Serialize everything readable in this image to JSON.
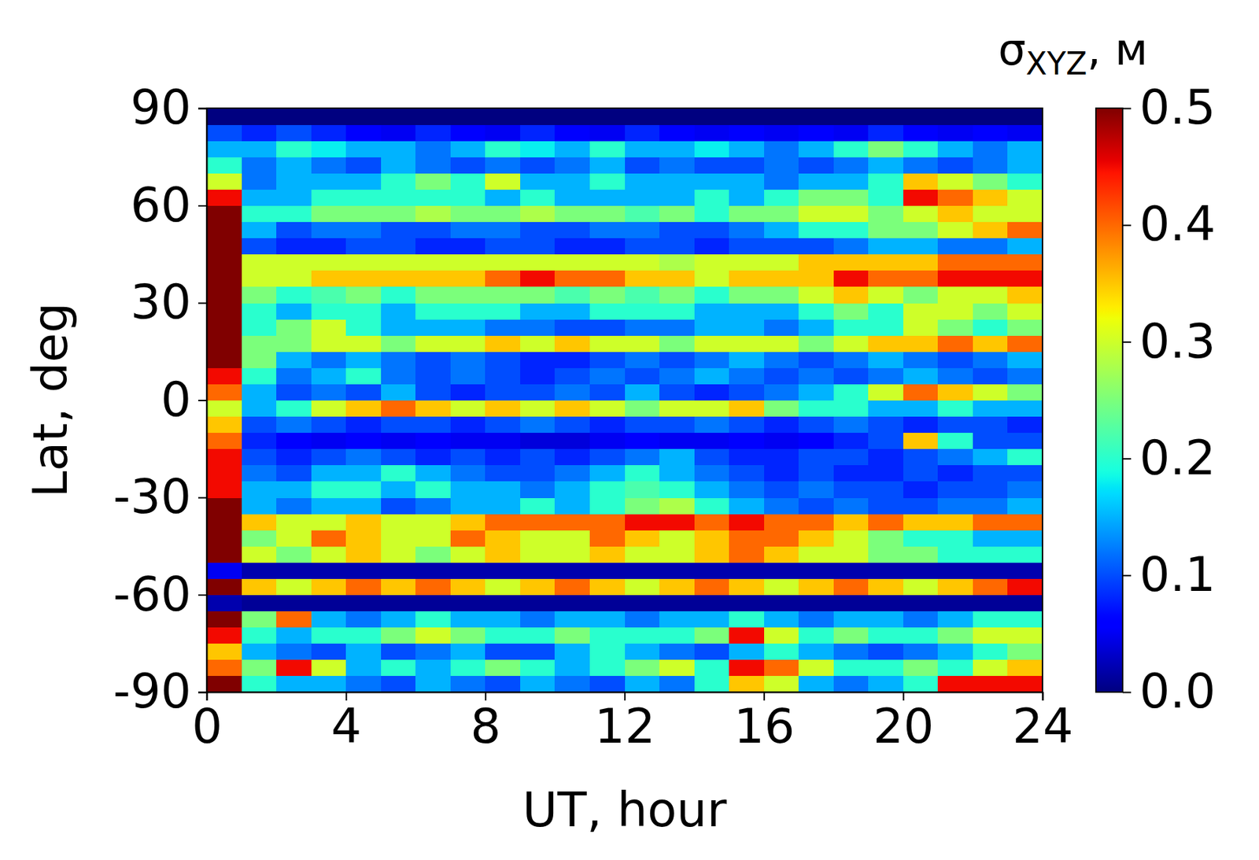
{
  "chart_data": {
    "type": "heatmap",
    "x_label": "UT, hour",
    "y_label": "Lat, deg",
    "xlim": [
      0,
      24
    ],
    "ylim": [
      -90,
      90
    ],
    "xticks": [
      0,
      4,
      8,
      12,
      16,
      20,
      24
    ],
    "yticks": [
      -90,
      -60,
      -30,
      0,
      30,
      60,
      90
    ],
    "x_edges": [
      0,
      1,
      2,
      3,
      4,
      5,
      6,
      7,
      8,
      9,
      10,
      11,
      12,
      13,
      14,
      15,
      16,
      17,
      18,
      19,
      20,
      21,
      22,
      23,
      24
    ],
    "y_edges": [
      -90,
      -85,
      -80,
      -75,
      -70,
      -65,
      -60,
      -55,
      -50,
      -45,
      -40,
      -35,
      -30,
      -25,
      -20,
      -15,
      -10,
      -5,
      0,
      5,
      10,
      15,
      20,
      25,
      30,
      35,
      40,
      45,
      50,
      55,
      60,
      65,
      70,
      75,
      80,
      85,
      90
    ],
    "values": [
      [
        0.5,
        0.2,
        0.15,
        0.15,
        0.12,
        0.1,
        0.15,
        0.12,
        0.1,
        0.15,
        0.12,
        0.1,
        0.15,
        0.12,
        0.2,
        0.35,
        0.3,
        0.15,
        0.12,
        0.15,
        0.2,
        0.45,
        0.45,
        0.45
      ],
      [
        0.4,
        0.25,
        0.45,
        0.3,
        0.15,
        0.2,
        0.15,
        0.2,
        0.25,
        0.2,
        0.15,
        0.2,
        0.25,
        0.3,
        0.2,
        0.45,
        0.4,
        0.3,
        0.2,
        0.2,
        0.25,
        0.2,
        0.3,
        0.35
      ],
      [
        0.35,
        0.15,
        0.12,
        0.1,
        0.15,
        0.1,
        0.12,
        0.15,
        0.1,
        0.1,
        0.15,
        0.2,
        0.15,
        0.12,
        0.1,
        0.15,
        0.2,
        0.15,
        0.12,
        0.1,
        0.12,
        0.15,
        0.2,
        0.25
      ],
      [
        0.45,
        0.2,
        0.15,
        0.2,
        0.2,
        0.25,
        0.3,
        0.25,
        0.2,
        0.2,
        0.25,
        0.2,
        0.2,
        0.2,
        0.25,
        0.45,
        0.3,
        0.2,
        0.25,
        0.2,
        0.2,
        0.25,
        0.3,
        0.3
      ],
      [
        0.5,
        0.25,
        0.4,
        0.15,
        0.12,
        0.15,
        0.2,
        0.15,
        0.15,
        0.12,
        0.15,
        0.15,
        0.12,
        0.15,
        0.15,
        0.2,
        0.15,
        0.12,
        0.15,
        0.15,
        0.12,
        0.15,
        0.2,
        0.2
      ],
      [
        0.02,
        0.01,
        0.01,
        0.01,
        0.01,
        0.01,
        0.01,
        0.01,
        0.01,
        0.01,
        0.01,
        0.01,
        0.01,
        0.01,
        0.01,
        0.01,
        0.01,
        0.01,
        0.01,
        0.01,
        0.01,
        0.01,
        0.01,
        0.01
      ],
      [
        0.5,
        0.35,
        0.3,
        0.35,
        0.4,
        0.35,
        0.4,
        0.35,
        0.3,
        0.35,
        0.4,
        0.35,
        0.3,
        0.35,
        0.4,
        0.35,
        0.3,
        0.35,
        0.4,
        0.35,
        0.3,
        0.35,
        0.4,
        0.45
      ],
      [
        0.05,
        0.02,
        0.02,
        0.02,
        0.02,
        0.02,
        0.02,
        0.02,
        0.02,
        0.02,
        0.02,
        0.02,
        0.02,
        0.02,
        0.02,
        0.02,
        0.02,
        0.02,
        0.02,
        0.02,
        0.02,
        0.02,
        0.02,
        0.02
      ],
      [
        0.5,
        0.3,
        0.25,
        0.3,
        0.35,
        0.3,
        0.25,
        0.3,
        0.35,
        0.3,
        0.3,
        0.35,
        0.3,
        0.3,
        0.35,
        0.4,
        0.35,
        0.3,
        0.3,
        0.25,
        0.25,
        0.2,
        0.2,
        0.2
      ],
      [
        0.5,
        0.25,
        0.3,
        0.4,
        0.35,
        0.3,
        0.3,
        0.4,
        0.35,
        0.3,
        0.3,
        0.4,
        0.35,
        0.3,
        0.35,
        0.4,
        0.4,
        0.35,
        0.3,
        0.25,
        0.2,
        0.2,
        0.15,
        0.15
      ],
      [
        0.5,
        0.35,
        0.3,
        0.3,
        0.35,
        0.3,
        0.3,
        0.35,
        0.4,
        0.4,
        0.4,
        0.4,
        0.45,
        0.45,
        0.4,
        0.45,
        0.4,
        0.4,
        0.35,
        0.4,
        0.35,
        0.35,
        0.4,
        0.4
      ],
      [
        0.5,
        0.15,
        0.12,
        0.15,
        0.15,
        0.1,
        0.12,
        0.15,
        0.15,
        0.2,
        0.15,
        0.2,
        0.25,
        0.28,
        0.2,
        0.15,
        0.12,
        0.1,
        0.12,
        0.1,
        0.1,
        0.12,
        0.12,
        0.15
      ],
      [
        0.45,
        0.15,
        0.15,
        0.2,
        0.2,
        0.15,
        0.2,
        0.15,
        0.15,
        0.12,
        0.15,
        0.2,
        0.22,
        0.2,
        0.15,
        0.12,
        0.1,
        0.12,
        0.1,
        0.1,
        0.08,
        0.1,
        0.1,
        0.12
      ],
      [
        0.45,
        0.12,
        0.1,
        0.15,
        0.15,
        0.2,
        0.15,
        0.12,
        0.1,
        0.1,
        0.12,
        0.15,
        0.2,
        0.15,
        0.12,
        0.1,
        0.08,
        0.1,
        0.08,
        0.08,
        0.1,
        0.08,
        0.1,
        0.1
      ],
      [
        0.45,
        0.1,
        0.08,
        0.1,
        0.12,
        0.1,
        0.08,
        0.1,
        0.08,
        0.1,
        0.08,
        0.1,
        0.12,
        0.15,
        0.1,
        0.08,
        0.08,
        0.1,
        0.1,
        0.08,
        0.1,
        0.12,
        0.15,
        0.2
      ],
      [
        0.4,
        0.08,
        0.06,
        0.05,
        0.06,
        0.05,
        0.06,
        0.05,
        0.05,
        0.04,
        0.04,
        0.05,
        0.06,
        0.05,
        0.05,
        0.06,
        0.05,
        0.06,
        0.08,
        0.1,
        0.35,
        0.2,
        0.1,
        0.1
      ],
      [
        0.35,
        0.1,
        0.12,
        0.1,
        0.08,
        0.1,
        0.1,
        0.08,
        0.1,
        0.12,
        0.1,
        0.08,
        0.1,
        0.1,
        0.12,
        0.1,
        0.08,
        0.1,
        0.12,
        0.1,
        0.08,
        0.1,
        0.1,
        0.08
      ],
      [
        0.3,
        0.15,
        0.2,
        0.3,
        0.35,
        0.4,
        0.35,
        0.3,
        0.35,
        0.3,
        0.35,
        0.3,
        0.25,
        0.3,
        0.3,
        0.35,
        0.25,
        0.2,
        0.2,
        0.15,
        0.15,
        0.2,
        0.15,
        0.15
      ],
      [
        0.4,
        0.15,
        0.1,
        0.12,
        0.1,
        0.15,
        0.1,
        0.08,
        0.1,
        0.1,
        0.12,
        0.1,
        0.15,
        0.1,
        0.08,
        0.1,
        0.12,
        0.15,
        0.2,
        0.3,
        0.4,
        0.35,
        0.3,
        0.25
      ],
      [
        0.45,
        0.2,
        0.12,
        0.15,
        0.2,
        0.12,
        0.1,
        0.12,
        0.1,
        0.08,
        0.1,
        0.12,
        0.1,
        0.12,
        0.15,
        0.12,
        0.1,
        0.12,
        0.1,
        0.12,
        0.15,
        0.12,
        0.1,
        0.12
      ],
      [
        0.5,
        0.25,
        0.15,
        0.12,
        0.15,
        0.12,
        0.1,
        0.12,
        0.1,
        0.08,
        0.08,
        0.1,
        0.12,
        0.1,
        0.12,
        0.15,
        0.12,
        0.1,
        0.12,
        0.15,
        0.12,
        0.1,
        0.12,
        0.15
      ],
      [
        0.5,
        0.25,
        0.25,
        0.3,
        0.3,
        0.25,
        0.3,
        0.3,
        0.35,
        0.3,
        0.35,
        0.3,
        0.3,
        0.25,
        0.3,
        0.3,
        0.3,
        0.25,
        0.3,
        0.35,
        0.35,
        0.4,
        0.35,
        0.4
      ],
      [
        0.5,
        0.2,
        0.25,
        0.3,
        0.2,
        0.15,
        0.15,
        0.15,
        0.12,
        0.12,
        0.1,
        0.1,
        0.12,
        0.12,
        0.15,
        0.15,
        0.12,
        0.15,
        0.2,
        0.2,
        0.3,
        0.25,
        0.2,
        0.25
      ],
      [
        0.5,
        0.2,
        0.15,
        0.2,
        0.2,
        0.15,
        0.2,
        0.2,
        0.2,
        0.15,
        0.15,
        0.2,
        0.2,
        0.2,
        0.15,
        0.15,
        0.15,
        0.2,
        0.25,
        0.2,
        0.3,
        0.3,
        0.25,
        0.3
      ],
      [
        0.5,
        0.25,
        0.2,
        0.22,
        0.25,
        0.2,
        0.25,
        0.25,
        0.25,
        0.25,
        0.22,
        0.25,
        0.22,
        0.25,
        0.2,
        0.25,
        0.25,
        0.3,
        0.35,
        0.3,
        0.25,
        0.3,
        0.3,
        0.35
      ],
      [
        0.5,
        0.3,
        0.3,
        0.35,
        0.35,
        0.35,
        0.35,
        0.35,
        0.4,
        0.45,
        0.4,
        0.4,
        0.35,
        0.35,
        0.3,
        0.35,
        0.35,
        0.35,
        0.45,
        0.4,
        0.4,
        0.45,
        0.45,
        0.45
      ],
      [
        0.5,
        0.3,
        0.3,
        0.3,
        0.3,
        0.3,
        0.3,
        0.3,
        0.3,
        0.3,
        0.3,
        0.3,
        0.3,
        0.28,
        0.3,
        0.3,
        0.3,
        0.35,
        0.35,
        0.35,
        0.35,
        0.4,
        0.4,
        0.4
      ],
      [
        0.5,
        0.1,
        0.08,
        0.08,
        0.1,
        0.1,
        0.08,
        0.08,
        0.1,
        0.1,
        0.08,
        0.08,
        0.1,
        0.1,
        0.08,
        0.1,
        0.1,
        0.1,
        0.12,
        0.15,
        0.15,
        0.12,
        0.12,
        0.15
      ],
      [
        0.5,
        0.15,
        0.1,
        0.12,
        0.12,
        0.1,
        0.1,
        0.12,
        0.12,
        0.1,
        0.1,
        0.12,
        0.12,
        0.1,
        0.1,
        0.12,
        0.15,
        0.2,
        0.2,
        0.25,
        0.25,
        0.3,
        0.35,
        0.4
      ],
      [
        0.5,
        0.2,
        0.2,
        0.25,
        0.25,
        0.25,
        0.28,
        0.25,
        0.25,
        0.28,
        0.25,
        0.25,
        0.22,
        0.25,
        0.2,
        0.25,
        0.25,
        0.3,
        0.3,
        0.25,
        0.3,
        0.35,
        0.3,
        0.3
      ],
      [
        0.45,
        0.15,
        0.15,
        0.2,
        0.2,
        0.2,
        0.2,
        0.2,
        0.15,
        0.2,
        0.15,
        0.15,
        0.15,
        0.15,
        0.2,
        0.15,
        0.2,
        0.25,
        0.25,
        0.2,
        0.45,
        0.4,
        0.35,
        0.3
      ],
      [
        0.3,
        0.12,
        0.15,
        0.15,
        0.15,
        0.2,
        0.25,
        0.2,
        0.3,
        0.15,
        0.15,
        0.2,
        0.15,
        0.15,
        0.15,
        0.15,
        0.12,
        0.15,
        0.15,
        0.2,
        0.35,
        0.3,
        0.25,
        0.2
      ],
      [
        0.2,
        0.12,
        0.15,
        0.12,
        0.1,
        0.15,
        0.12,
        0.1,
        0.12,
        0.1,
        0.12,
        0.15,
        0.1,
        0.12,
        0.1,
        0.1,
        0.12,
        0.1,
        0.12,
        0.15,
        0.12,
        0.1,
        0.12,
        0.15
      ],
      [
        0.15,
        0.15,
        0.2,
        0.18,
        0.15,
        0.15,
        0.12,
        0.15,
        0.2,
        0.18,
        0.15,
        0.2,
        0.15,
        0.15,
        0.18,
        0.15,
        0.12,
        0.15,
        0.2,
        0.25,
        0.2,
        0.15,
        0.12,
        0.15
      ],
      [
        0.1,
        0.08,
        0.1,
        0.08,
        0.06,
        0.05,
        0.08,
        0.06,
        0.05,
        0.08,
        0.06,
        0.05,
        0.08,
        0.06,
        0.05,
        0.06,
        0.05,
        0.06,
        0.05,
        0.08,
        0.06,
        0.05,
        0.06,
        0.05
      ],
      [
        0,
        0,
        0,
        0,
        0,
        0,
        0,
        0,
        0,
        0,
        0,
        0,
        0,
        0,
        0,
        0,
        0,
        0,
        0,
        0,
        0,
        0,
        0,
        0
      ]
    ],
    "color": "jet",
    "colorbar_label": [
      "σ",
      "XYZ",
      ", м"
    ],
    "colorbar_range": [
      0,
      0.5
    ],
    "colorbar_ticks": [
      {
        "value": 0,
        "label": "0.0"
      },
      {
        "value": 0.1,
        "label": "0.1"
      },
      {
        "value": 0.2,
        "label": "0.2"
      },
      {
        "value": 0.3,
        "label": "0.3"
      },
      {
        "value": 0.4,
        "label": "0.4"
      },
      {
        "value": 0.5,
        "label": "0.5"
      }
    ]
  }
}
